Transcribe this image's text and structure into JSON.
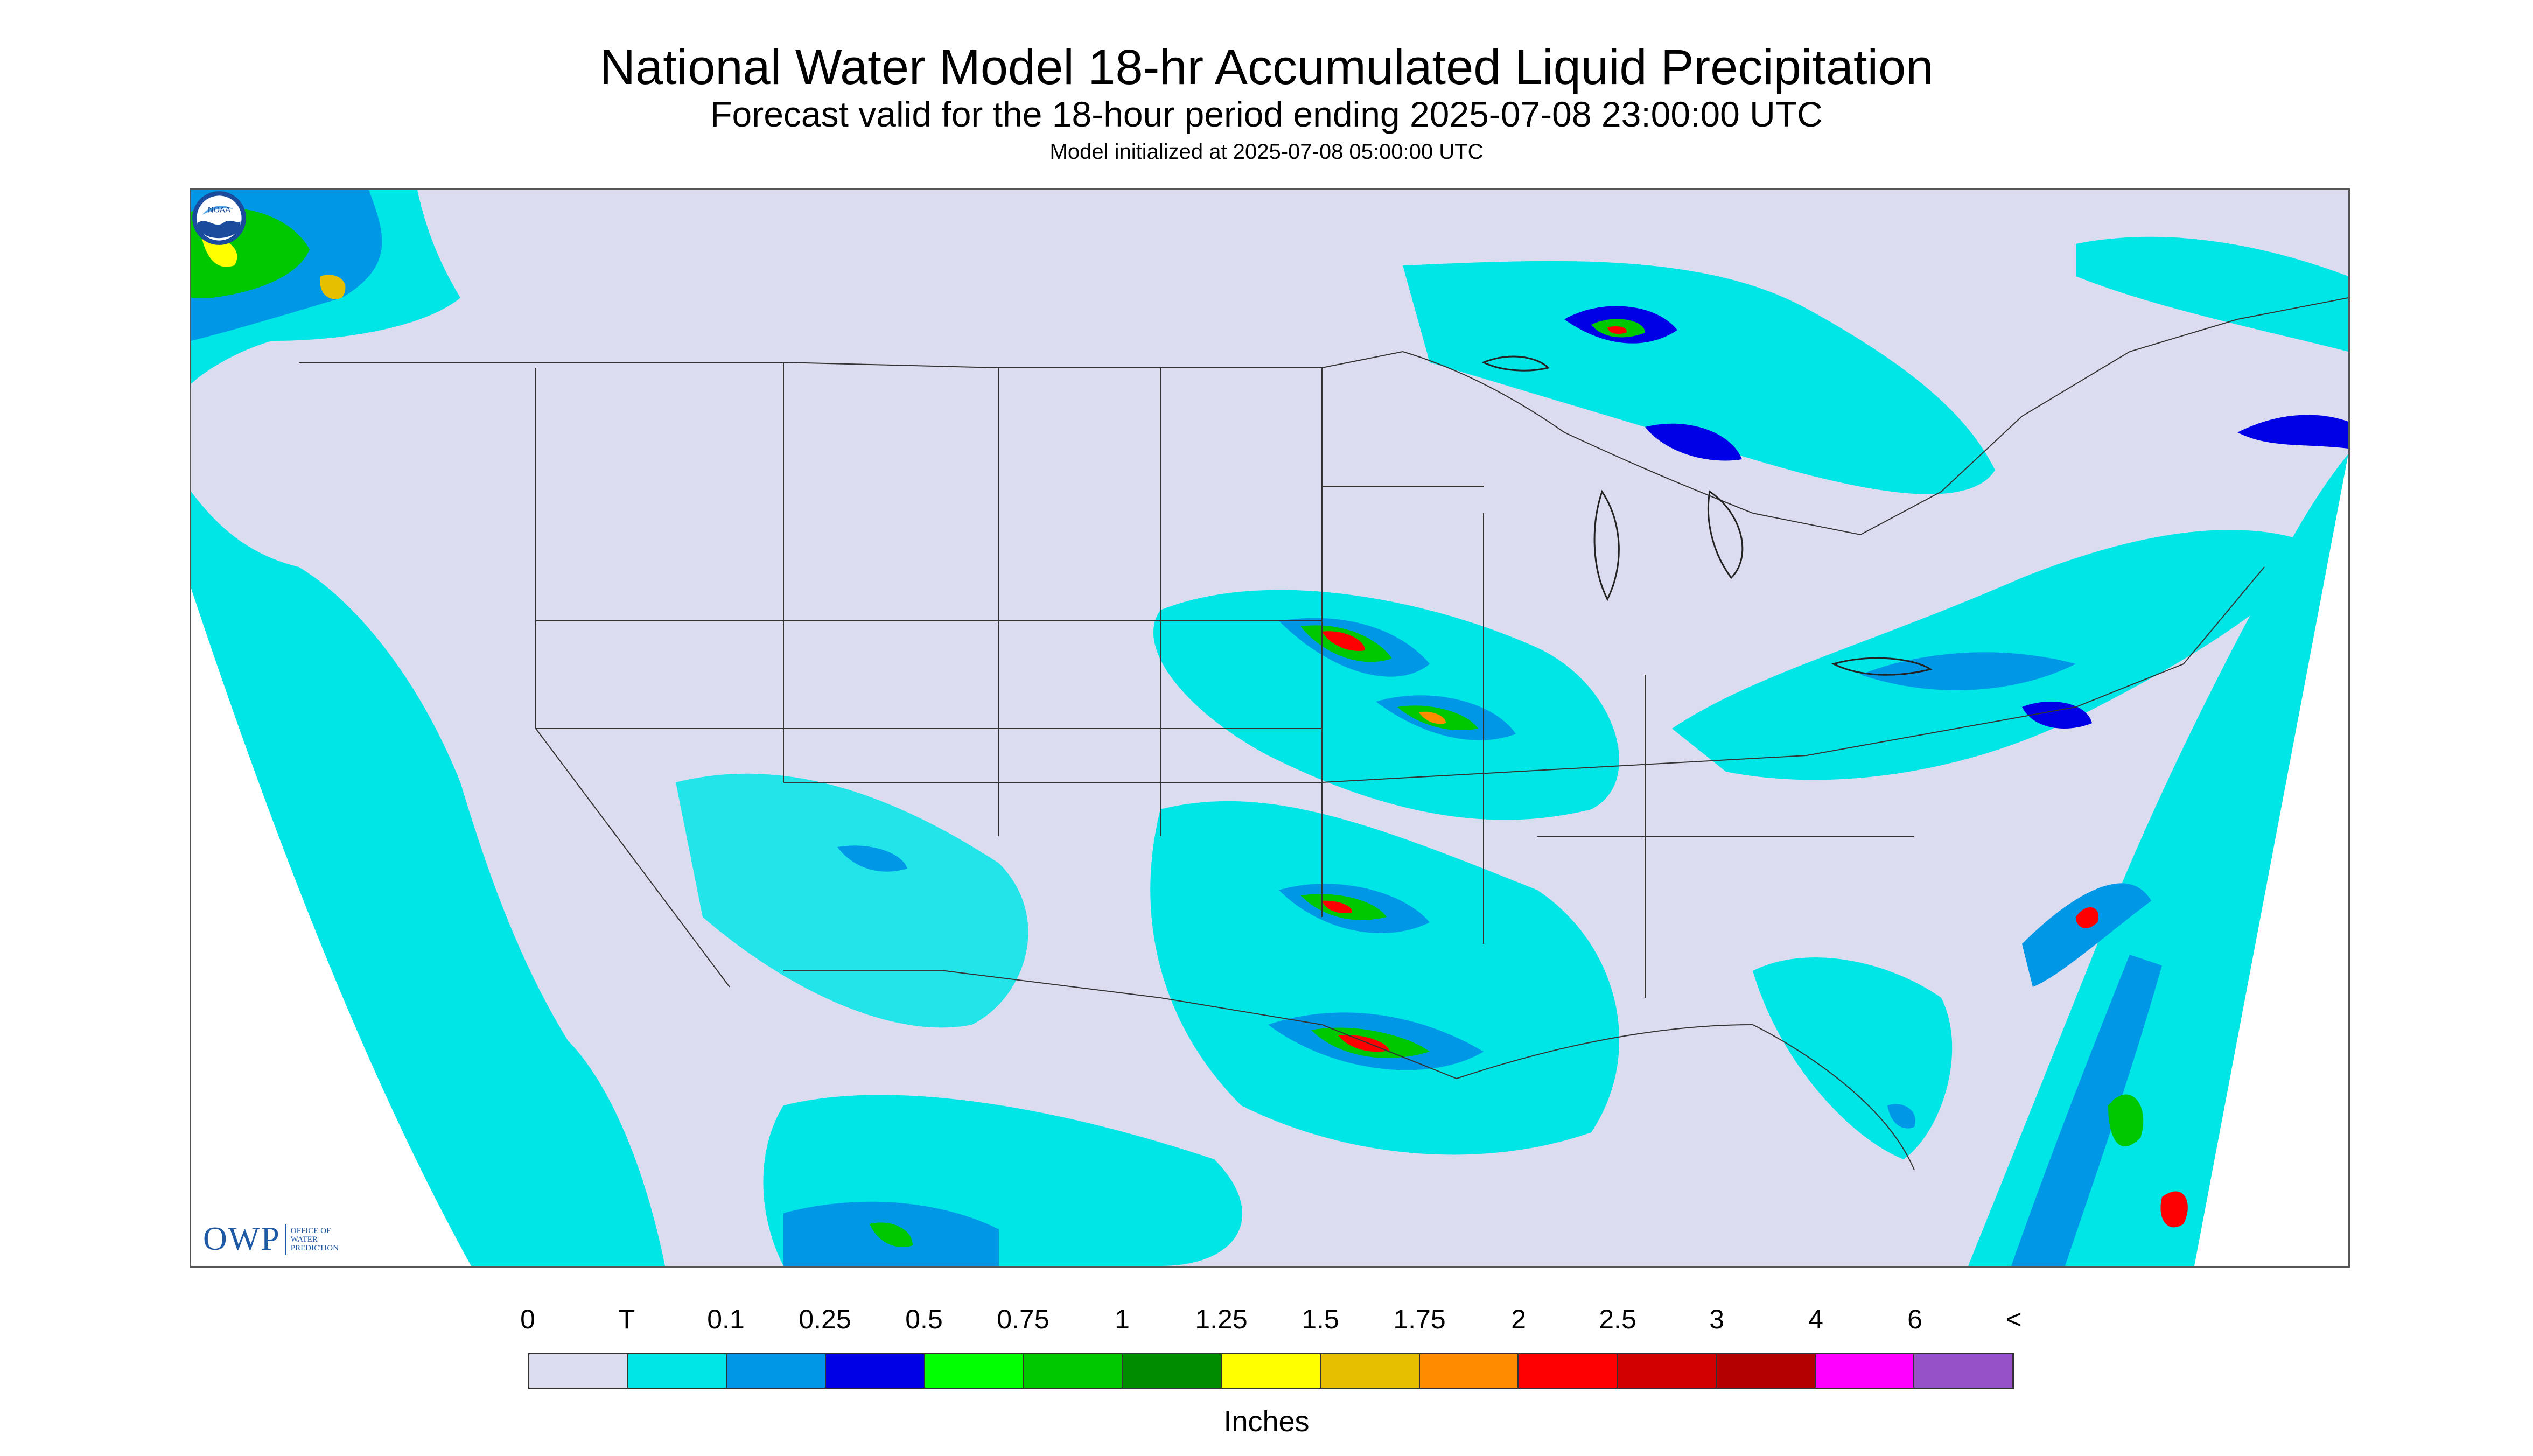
{
  "title": "National Water Model 18-hr Accumulated Liquid Precipitation",
  "subtitle": "Forecast valid for the 18-hour period ending 2025-07-08 23:00:00 UTC",
  "init_text": "Model initialized at 2025-07-08 05:00:00 UTC",
  "logo": {
    "letters": "OWP",
    "line1": "OFFICE OF",
    "line2": "WATER",
    "line3": "PREDICTION",
    "noaa_text": "NOAA"
  },
  "legend": {
    "labels": [
      "0",
      "T",
      "0.1",
      "0.25",
      "0.5",
      "0.75",
      "1",
      "1.25",
      "1.5",
      "1.75",
      "2",
      "2.5",
      "3",
      "4",
      "6",
      "<"
    ],
    "colors": [
      "#dcdcf0",
      "#00e6e6",
      "#0098e6",
      "#0000e6",
      "#00ff00",
      "#00c800",
      "#008c00",
      "#ffff00",
      "#e6c000",
      "#ff8c00",
      "#ff0000",
      "#d20000",
      "#b40000",
      "#ff00ff",
      "#9650c8"
    ],
    "units": "Inches"
  },
  "colors": {
    "no_precip": "#dcdcf0",
    "trace": "#00e6e6",
    "outside": "#ffffff",
    "border": "#333333"
  }
}
